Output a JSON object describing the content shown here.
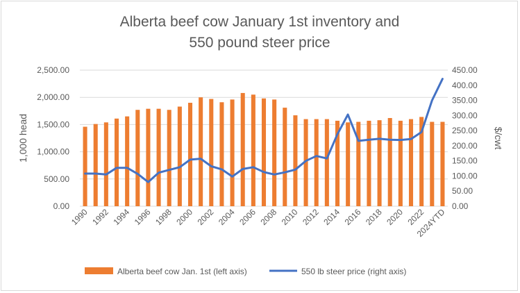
{
  "chart_data": {
    "type": "bar+line",
    "title_lines": [
      "Alberta beef cow January 1st inventory and",
      "550 pound steer price"
    ],
    "ylabel_left": "1,000 head",
    "ylabel_right": "$/cwt",
    "ylim_left": [
      0,
      2500
    ],
    "ylim_right": [
      0,
      450
    ],
    "yticks_left": [
      "0.00",
      "500.00",
      "1,000.00",
      "1,500.00",
      "2,000.00",
      "2,500.00"
    ],
    "yticks_right": [
      "0.00",
      "50.00",
      "100.00",
      "150.00",
      "200.00",
      "250.00",
      "300.00",
      "350.00",
      "400.00",
      "450.00"
    ],
    "categories": [
      "1990",
      "1991",
      "1992",
      "1993",
      "1994",
      "1995",
      "1996",
      "1997",
      "1998",
      "1999",
      "2000",
      "2001",
      "2002",
      "2003",
      "2004",
      "2005",
      "2006",
      "2007",
      "2008",
      "2009",
      "2010",
      "2011",
      "2012",
      "2013",
      "2014",
      "2015",
      "2016",
      "2017",
      "2018",
      "2019",
      "2020",
      "2021",
      "2022",
      "2023",
      "2024YTD"
    ],
    "x_tick_labels": [
      "1990",
      "",
      "1992",
      "",
      "1994",
      "",
      "1996",
      "",
      "1998",
      "",
      "2000",
      "",
      "2002",
      "",
      "2004",
      "",
      "2006",
      "",
      "2008",
      "",
      "2010",
      "",
      "2012",
      "",
      "2014",
      "",
      "2016",
      "",
      "2018",
      "",
      "2020",
      "",
      "2022",
      "",
      "2024YTD"
    ],
    "series": [
      {
        "name": "Alberta beef cow Jan. 1st (left axis)",
        "type": "bar",
        "axis": "left",
        "color": "#ed7d31",
        "values": [
          1460,
          1510,
          1540,
          1610,
          1650,
          1770,
          1790,
          1790,
          1770,
          1830,
          1900,
          2000,
          1970,
          1910,
          1960,
          2080,
          2050,
          1980,
          1960,
          1810,
          1670,
          1600,
          1600,
          1600,
          1570,
          1540,
          1550,
          1570,
          1580,
          1620,
          1570,
          1600,
          1640,
          1550,
          1550
        ]
      },
      {
        "name": "550 lb steer price (right axis)",
        "type": "line",
        "axis": "right",
        "color": "#4472c4",
        "values": [
          108,
          108,
          105,
          127,
          127,
          107,
          80,
          111,
          120,
          129,
          154,
          157,
          132,
          122,
          98,
          123,
          129,
          113,
          105,
          112,
          121,
          150,
          166,
          158,
          238,
          303,
          216,
          220,
          223,
          220,
          219,
          222,
          245,
          350,
          421
        ]
      }
    ],
    "legend_position": "bottom",
    "grid": "horizontal"
  }
}
